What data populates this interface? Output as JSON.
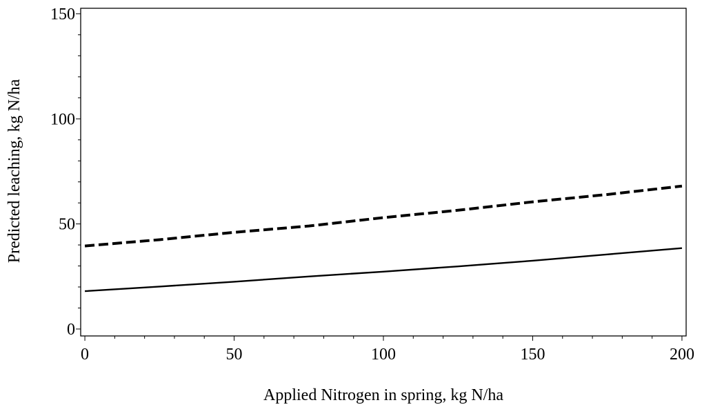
{
  "chart_data": {
    "type": "line",
    "xlabel": "Applied Nitrogen in spring, kg N/ha",
    "ylabel": "Predicted leaching, kg N/ha",
    "x": [
      0,
      25,
      50,
      75,
      100,
      125,
      150,
      175,
      200
    ],
    "series": [
      {
        "color": "#000000",
        "line_style": "dashed",
        "values": [
          39.5,
          42.5,
          46,
          49,
          53,
          56.5,
          60.5,
          64,
          68
        ]
      },
      {
        "color": "#000000",
        "line_style": "solid",
        "values": [
          18,
          20.2,
          22.5,
          25,
          27.3,
          29.8,
          32.5,
          35.5,
          38.5
        ]
      }
    ],
    "xlim": [
      -1.4,
      201.4
    ],
    "ylim": [
      -3.3,
      152.6
    ],
    "xticks": [
      0,
      50,
      100,
      150,
      200
    ],
    "yticks": [
      0,
      50,
      100,
      150
    ],
    "xminorticks": [
      10,
      20,
      30,
      40,
      60,
      70,
      80,
      90,
      110,
      120,
      130,
      140,
      160,
      170,
      180,
      190
    ],
    "yminorticks": [
      10,
      20,
      30,
      40,
      60,
      70,
      80,
      90,
      110,
      120,
      130,
      140
    ],
    "grid": false
  }
}
